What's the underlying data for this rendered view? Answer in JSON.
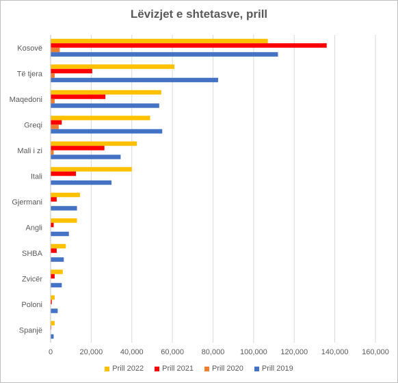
{
  "chart_data": {
    "type": "bar",
    "orientation": "horizontal",
    "title": "Lëvizjet e shtetasve, prill",
    "categories": [
      "Kosovë",
      "Të tjera",
      "Maqedoni",
      "Greqi",
      "Mali i zi",
      "Itali",
      "Gjermani",
      "Angli",
      "SHBA",
      "Zvicër",
      "Poloni",
      "Spanjë"
    ],
    "series": [
      {
        "name": "Prill 2022",
        "color": "#ffc000",
        "values": [
          107000,
          61000,
          54500,
          49000,
          42500,
          40000,
          14500,
          13000,
          7500,
          6000,
          2000,
          2000
        ]
      },
      {
        "name": "Prill 2021",
        "color": "#ff0000",
        "values": [
          136000,
          20500,
          27000,
          5500,
          26500,
          12500,
          3000,
          1500,
          3000,
          2000,
          600,
          300
        ]
      },
      {
        "name": "Prill 2020",
        "color": "#ed7d31",
        "values": [
          4500,
          2000,
          2000,
          4000,
          1500,
          0,
          0,
          0,
          0,
          0,
          0,
          0
        ]
      },
      {
        "name": "Prill 2019",
        "color": "#4472c4",
        "values": [
          112000,
          82500,
          53500,
          55000,
          34500,
          30000,
          13000,
          9000,
          6500,
          5500,
          3500,
          1500
        ]
      }
    ],
    "xlim": [
      0,
      160000
    ],
    "x_ticks": [
      "0",
      "20,000",
      "40,000",
      "60,000",
      "80,000",
      "100,000",
      "120,000",
      "140,000",
      "160,000"
    ],
    "grid": true,
    "legend_position": "bottom"
  }
}
